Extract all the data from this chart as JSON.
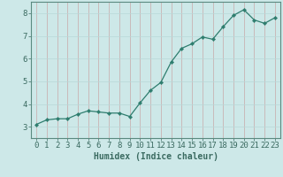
{
  "x": [
    0,
    1,
    2,
    3,
    4,
    5,
    6,
    7,
    8,
    9,
    10,
    11,
    12,
    13,
    14,
    15,
    16,
    17,
    18,
    19,
    20,
    21,
    22,
    23
  ],
  "y": [
    3.1,
    3.3,
    3.35,
    3.35,
    3.55,
    3.7,
    3.65,
    3.6,
    3.6,
    3.45,
    4.05,
    4.6,
    4.95,
    5.85,
    6.45,
    6.65,
    6.95,
    6.85,
    7.4,
    7.9,
    8.15,
    7.7,
    7.55,
    7.8
  ],
  "line_color": "#2e7d6e",
  "marker": "D",
  "marker_size": 2.2,
  "background_color": "#cde8e8",
  "grid_color": "#b8d8d8",
  "xlabel": "Humidex (Indice chaleur)",
  "xlabel_fontsize": 7,
  "tick_fontsize": 6.5,
  "xlim": [
    -0.5,
    23.5
  ],
  "ylim": [
    2.5,
    8.5
  ],
  "yticks": [
    3,
    4,
    5,
    6,
    7,
    8
  ],
  "xticks": [
    0,
    1,
    2,
    3,
    4,
    5,
    6,
    7,
    8,
    9,
    10,
    11,
    12,
    13,
    14,
    15,
    16,
    17,
    18,
    19,
    20,
    21,
    22,
    23
  ],
  "spine_color": "#5a8a80",
  "axis_color": "#3a6a60"
}
